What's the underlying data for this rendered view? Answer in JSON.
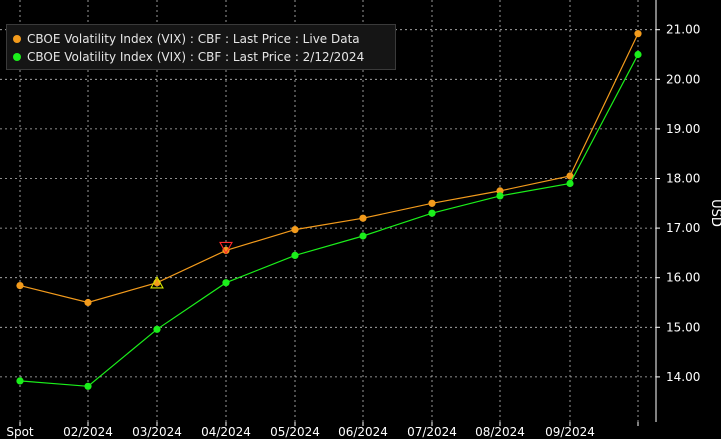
{
  "colors": {
    "background": "#000000",
    "grid": "#bdbdbd",
    "axis_text": "#ffffff",
    "series_live": "#f39b1c",
    "series_hist": "#1bef1b",
    "marker_down": "#ff2a2a",
    "marker_up": "#d8e800"
  },
  "chart_data": {
    "type": "line",
    "categories": [
      "Spot",
      "02/2024",
      "03/2024",
      "04/2024",
      "05/2024",
      "06/2024",
      "07/2024",
      "08/2024",
      "09/2024",
      ""
    ],
    "series": [
      {
        "name": "CBOE Volatility Index (VIX) : CBF : Last Price : Live Data",
        "color": "#f39b1c",
        "values": [
          15.84,
          15.5,
          15.9,
          16.55,
          16.97,
          17.2,
          17.5,
          17.75,
          18.05,
          20.92
        ]
      },
      {
        "name": "CBOE Volatility Index (VIX) : CBF : Last Price : 2/12/2024",
        "color": "#1bef1b",
        "values": [
          13.92,
          13.81,
          14.96,
          15.9,
          16.45,
          16.84,
          17.3,
          17.65,
          17.9,
          20.5
        ]
      }
    ],
    "markers": [
      {
        "type": "triangle-down",
        "category": "04/2024",
        "value": 16.59,
        "color": "#ff2a2a"
      },
      {
        "type": "triangle-up",
        "category": "03/2024",
        "value": 15.89,
        "color": "#d8e800"
      }
    ],
    "ylabel": "USD",
    "yticks": [
      "14.00",
      "15.00",
      "16.00",
      "17.00",
      "18.00",
      "19.00",
      "20.00",
      "21.00"
    ],
    "ylim": [
      13.0,
      21.6
    ],
    "grid": true,
    "y_axis_position": "right",
    "legend_position": "top-left"
  }
}
